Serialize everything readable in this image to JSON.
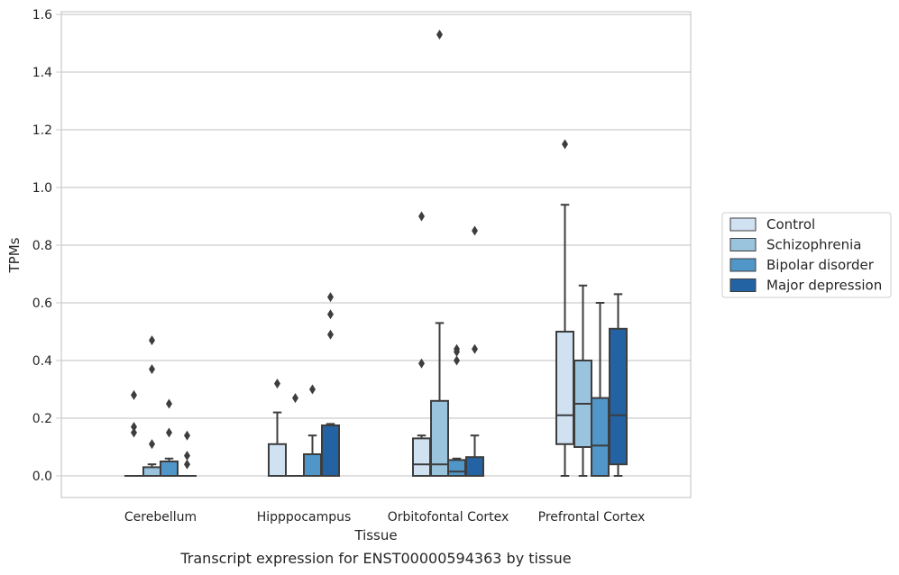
{
  "chart_data": {
    "type": "box",
    "caption": "Transcript expression for ENST00000594363 by tissue",
    "xlabel": "Tissue",
    "ylabel": "TPMs",
    "ylim": [
      -0.07,
      1.61
    ],
    "yticks": [
      0.0,
      0.2,
      0.4,
      0.6,
      0.8,
      1.0,
      1.2,
      1.4,
      1.6
    ],
    "ytick_labels": [
      "0.0",
      "0.2",
      "0.4",
      "0.6",
      "0.8",
      "1.0",
      "1.2",
      "1.4",
      "1.6"
    ],
    "categories": [
      "Cerebellum",
      "Hipppocampus",
      "Orbitofontal Cortex",
      "Prefrontal Cortex"
    ],
    "grid": "horizontal",
    "legend_position": "right",
    "series": [
      {
        "name": "Control",
        "color": "#d0e1f2",
        "boxes": [
          {
            "whislo": 0.0,
            "q1": 0.0,
            "med": 0.0,
            "q3": 0.0,
            "whishi": 0.0,
            "fliers": [
              0.28,
              0.17,
              0.15
            ]
          },
          {
            "whislo": 0.0,
            "q1": 0.0,
            "med": 0.0,
            "q3": 0.11,
            "whishi": 0.22,
            "fliers": [
              0.32
            ]
          },
          {
            "whislo": 0.0,
            "q1": 0.0,
            "med": 0.04,
            "q3": 0.13,
            "whishi": 0.14,
            "fliers": [
              0.39,
              0.9
            ]
          },
          {
            "whislo": 0.0,
            "q1": 0.11,
            "med": 0.21,
            "q3": 0.5,
            "whishi": 0.94,
            "fliers": [
              1.15
            ]
          }
        ]
      },
      {
        "name": "Schizophrenia",
        "color": "#9ac3de",
        "boxes": [
          {
            "whislo": 0.0,
            "q1": 0.0,
            "med": 0.0,
            "q3": 0.03,
            "whishi": 0.04,
            "fliers": [
              0.11,
              0.37,
              0.47
            ]
          },
          {
            "whislo": 0.0,
            "q1": 0.0,
            "med": 0.0,
            "q3": 0.0,
            "whishi": 0.0,
            "fliers": [
              0.27
            ]
          },
          {
            "whislo": 0.0,
            "q1": 0.0,
            "med": 0.04,
            "q3": 0.26,
            "whishi": 0.53,
            "fliers": [
              1.53
            ]
          },
          {
            "whislo": 0.0,
            "q1": 0.1,
            "med": 0.25,
            "q3": 0.4,
            "whishi": 0.66,
            "fliers": []
          }
        ]
      },
      {
        "name": "Bipolar disorder",
        "color": "#5096c8",
        "boxes": [
          {
            "whislo": 0.0,
            "q1": 0.0,
            "med": 0.0,
            "q3": 0.05,
            "whishi": 0.06,
            "fliers": [
              0.15,
              0.25
            ]
          },
          {
            "whislo": 0.0,
            "q1": 0.0,
            "med": 0.0,
            "q3": 0.075,
            "whishi": 0.14,
            "fliers": [
              0.3
            ]
          },
          {
            "whislo": 0.0,
            "q1": 0.0,
            "med": 0.015,
            "q3": 0.055,
            "whishi": 0.06,
            "fliers": [
              0.4,
              0.43,
              0.44
            ]
          },
          {
            "whislo": 0.0,
            "q1": 0.0,
            "med": 0.105,
            "q3": 0.27,
            "whishi": 0.6,
            "fliers": []
          }
        ]
      },
      {
        "name": "Major depression",
        "color": "#2363a4",
        "boxes": [
          {
            "whislo": 0.0,
            "q1": 0.0,
            "med": 0.0,
            "q3": 0.0,
            "whishi": 0.0,
            "fliers": [
              0.04,
              0.07,
              0.14
            ]
          },
          {
            "whislo": 0.0,
            "q1": 0.0,
            "med": 0.0,
            "q3": 0.175,
            "whishi": 0.18,
            "fliers": [
              0.49,
              0.56,
              0.62
            ]
          },
          {
            "whislo": 0.0,
            "q1": 0.0,
            "med": 0.0,
            "q3": 0.065,
            "whishi": 0.14,
            "fliers": [
              0.44,
              0.85
            ]
          },
          {
            "whislo": 0.0,
            "q1": 0.04,
            "med": 0.21,
            "q3": 0.51,
            "whishi": 0.63,
            "fliers": []
          }
        ]
      }
    ]
  }
}
